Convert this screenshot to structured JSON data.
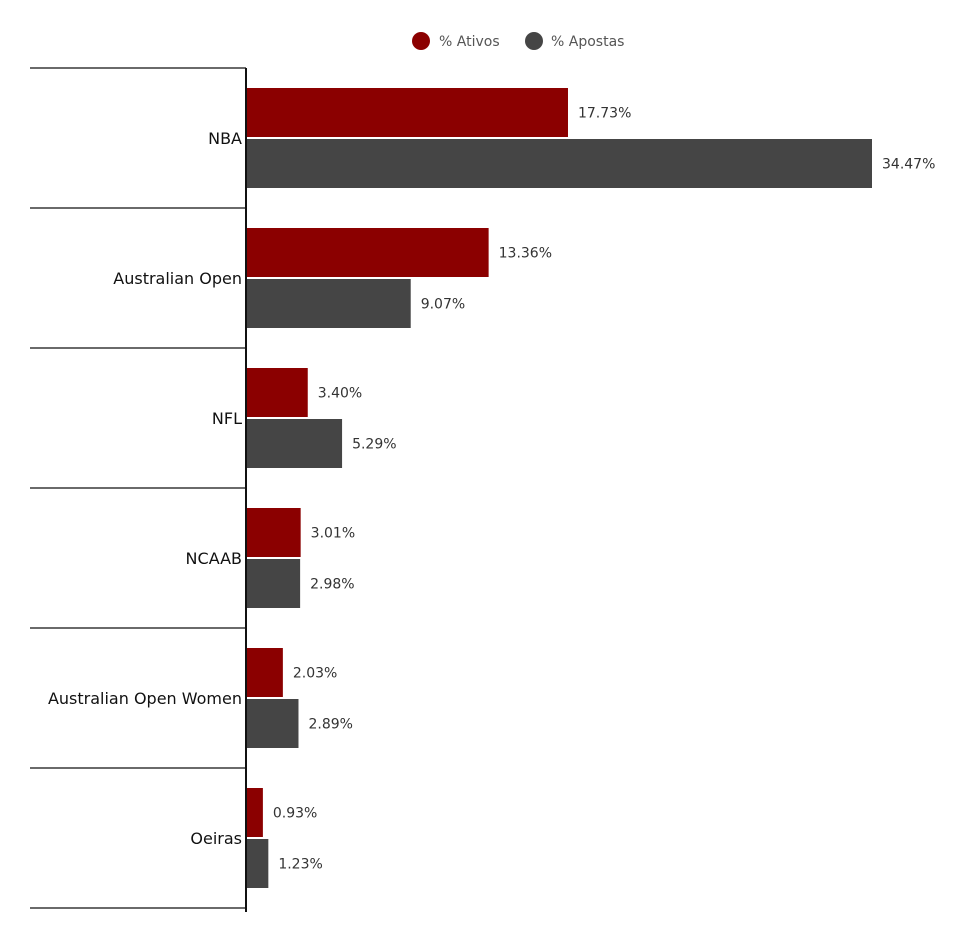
{
  "chart_data": {
    "type": "bar",
    "orientation": "horizontal",
    "categories": [
      "NBA",
      "Australian Open",
      "NFL",
      "NCAAB",
      "Australian Open Women",
      "Oeiras"
    ],
    "series": [
      {
        "name": "% Ativos",
        "color": "#8b0000",
        "values": [
          17.73,
          13.36,
          3.4,
          3.01,
          2.03,
          0.93
        ],
        "labels": [
          "17.73%",
          "13.36%",
          "3.40%",
          "3.01%",
          "2.03%",
          "0.93%"
        ]
      },
      {
        "name": "% Apostas",
        "color": "#454545",
        "values": [
          34.47,
          9.07,
          5.29,
          2.98,
          2.89,
          1.23
        ],
        "labels": [
          "34.47%",
          "9.07%",
          "5.29%",
          "2.98%",
          "2.89%",
          "1.23%"
        ]
      }
    ],
    "xlim": [
      0,
      34.47
    ],
    "grid": false,
    "legend_position": "top-center"
  }
}
